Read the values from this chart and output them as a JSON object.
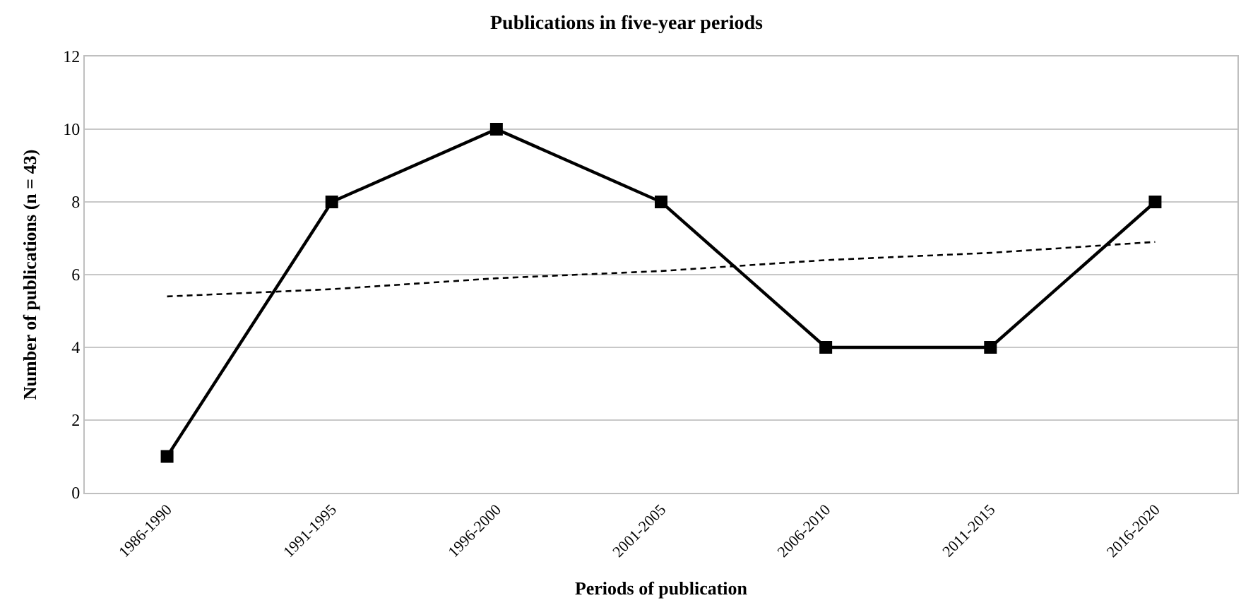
{
  "chart_data": {
    "type": "line",
    "title": "Publications in five-year periods",
    "xlabel": "Periods of publication",
    "ylabel": "Number of publications (n = 43)",
    "categories": [
      "1986-1990",
      "1991-1995",
      "1996-2000",
      "2001-2005",
      "2006-2010",
      "2011-2015",
      "2016-2020"
    ],
    "series": [
      {
        "color": "#000000",
        "values": [
          1,
          8,
          10,
          8,
          4,
          4,
          8
        ],
        "marker": "square",
        "line_style": "solid"
      },
      {
        "type": "line",
        "color": "#000000",
        "values": [
          5.4,
          5.6,
          5.9,
          6.1,
          6.4,
          6.6,
          6.9
        ],
        "marker": "none",
        "line_style": "dashed"
      }
    ],
    "ylim": [
      0,
      12
    ],
    "yticks": [
      0,
      2,
      4,
      6,
      8,
      10,
      12
    ],
    "grid": "y"
  }
}
